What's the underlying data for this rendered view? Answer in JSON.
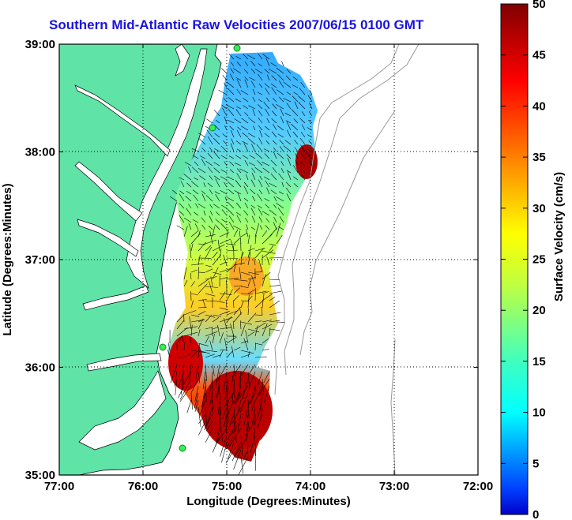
{
  "title": "Southern Mid-Atlantic Raw Velocities 2007/06/15 0100 GMT",
  "map": {
    "xlabel": "Longitude (Degrees:Minutes)",
    "ylabel": "Latitude (Degrees:Minutes)",
    "x_ticks": [
      "77:00",
      "76:00",
      "75:00",
      "74:00",
      "73:00",
      "72:00"
    ],
    "y_ticks": [
      "39:00",
      "38:00",
      "37:00",
      "36:00",
      "35:00"
    ],
    "lon_range": [
      -77,
      -72
    ],
    "lat_range": [
      35,
      39
    ],
    "grid": "dotted",
    "colors": {
      "land": "#5fe3a6",
      "water": "#ffffff",
      "coast": "#000000",
      "vectors": "#000000",
      "stations": "#33ee55"
    }
  },
  "colorbar": {
    "label": "Surface Velocity (cm/s)",
    "ticks": [
      "0",
      "5",
      "10",
      "15",
      "20",
      "25",
      "30",
      "35",
      "40",
      "45",
      "50"
    ],
    "range": [
      0,
      50
    ],
    "colormap": "jet"
  }
}
